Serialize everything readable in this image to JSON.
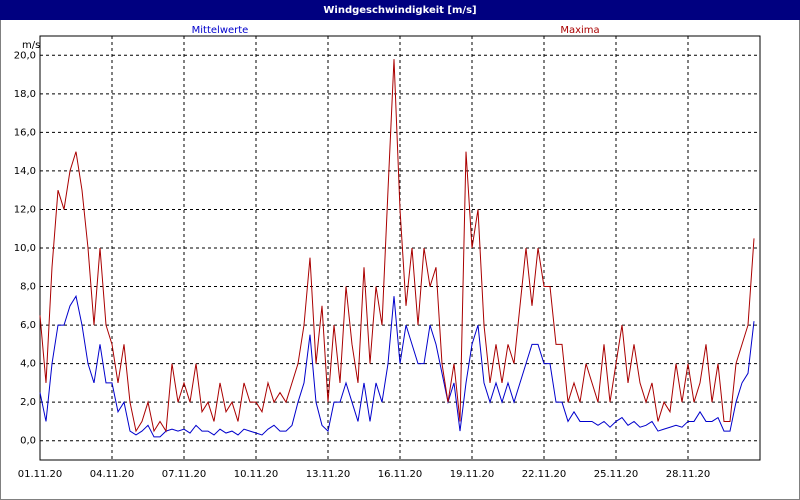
{
  "chart_data": {
    "type": "line",
    "title": "Windgeschwindigkeit [m/s]",
    "y_label": "m/s",
    "x": [
      0,
      0.25,
      0.5,
      0.75,
      1,
      1.25,
      1.5,
      1.75,
      2,
      2.25,
      2.5,
      2.75,
      3,
      3.25,
      3.5,
      3.75,
      4,
      4.25,
      4.5,
      4.75,
      5,
      5.25,
      5.5,
      5.75,
      6,
      6.25,
      6.5,
      6.75,
      7,
      7.25,
      7.5,
      7.75,
      8,
      8.25,
      8.5,
      8.75,
      9,
      9.25,
      9.5,
      9.75,
      10,
      10.25,
      10.5,
      10.75,
      11,
      11.25,
      11.5,
      11.75,
      12,
      12.25,
      12.5,
      12.75,
      13,
      13.25,
      13.5,
      13.75,
      14,
      14.25,
      14.5,
      14.75,
      15,
      15.25,
      15.5,
      15.75,
      16,
      16.25,
      16.5,
      16.75,
      17,
      17.25,
      17.5,
      17.75,
      18,
      18.25,
      18.5,
      18.75,
      19,
      19.25,
      19.5,
      19.75,
      20,
      20.25,
      20.5,
      20.75,
      21,
      21.25,
      21.5,
      21.75,
      22,
      22.25,
      22.5,
      22.75,
      23,
      23.25,
      23.5,
      23.75,
      24,
      24.25,
      24.5,
      24.75,
      25,
      25.25,
      25.5,
      25.75,
      26,
      26.25,
      26.5,
      26.75,
      27,
      27.25,
      27.5,
      27.75,
      28,
      28.25,
      28.5,
      28.75,
      29,
      29.25,
      29.5,
      29.75
    ],
    "series": [
      {
        "name": "Mittelwerte",
        "color": "#0000cc",
        "values": [
          2.5,
          1,
          4,
          6,
          6,
          7,
          7.5,
          6,
          4,
          3,
          5,
          3,
          3,
          1.5,
          2,
          0.5,
          0.3,
          0.5,
          0.8,
          0.2,
          0.2,
          0.5,
          0.6,
          0.5,
          0.6,
          0.4,
          0.8,
          0.5,
          0.5,
          0.3,
          0.6,
          0.4,
          0.5,
          0.3,
          0.6,
          0.5,
          0.4,
          0.3,
          0.6,
          0.8,
          0.5,
          0.5,
          0.8,
          2,
          3,
          5.5,
          2,
          0.8,
          0.5,
          2,
          2,
          3,
          2,
          1,
          3,
          1,
          3,
          2,
          4,
          7.5,
          4,
          6,
          5,
          4,
          4,
          6,
          5,
          3.5,
          2,
          3,
          0.5,
          3,
          5,
          6,
          3,
          2,
          3,
          2,
          3,
          2,
          3,
          4,
          5,
          5,
          4,
          4,
          2,
          2,
          1,
          1.5,
          1,
          1,
          1,
          0.8,
          1,
          0.7,
          1,
          1.2,
          0.8,
          1,
          0.7,
          0.8,
          1,
          0.5,
          0.6,
          0.7,
          0.8,
          0.7,
          1,
          1,
          1.5,
          1,
          1,
          1.2,
          0.5,
          0.5,
          2,
          3,
          3.5,
          6.2
        ]
      },
      {
        "name": "Maxima",
        "color": "#aa0000",
        "values": [
          6.5,
          3,
          9,
          13,
          12,
          14,
          15,
          13,
          10,
          6,
          10,
          6,
          5,
          3,
          5,
          2,
          0.5,
          1,
          2,
          0.5,
          1,
          0.5,
          4,
          2,
          3,
          2,
          4,
          1.5,
          2,
          1,
          3,
          1.5,
          2,
          1,
          3,
          2,
          2,
          1.5,
          3,
          2,
          2.5,
          2,
          3,
          4,
          6,
          9.5,
          4,
          7,
          2,
          6,
          3,
          8,
          5,
          3,
          9,
          4,
          8,
          6,
          13,
          19.8,
          12,
          7,
          10,
          6,
          10,
          8,
          9,
          4,
          2,
          4,
          1,
          15,
          10,
          12,
          6,
          3,
          5,
          3,
          5,
          4,
          7,
          10,
          7,
          10,
          8,
          8,
          5,
          5,
          2,
          3,
          2,
          4,
          3,
          2,
          5,
          2,
          4,
          6,
          3,
          5,
          3,
          2,
          3,
          1,
          2,
          1.5,
          4,
          2,
          4,
          2,
          3,
          5,
          2,
          4,
          1,
          1,
          4,
          5,
          6,
          10.5
        ]
      }
    ],
    "xlim": [
      0,
      30
    ],
    "xticks": [
      {
        "value": 0,
        "label": "01.11.20"
      },
      {
        "value": 3,
        "label": "04.11.20"
      },
      {
        "value": 6,
        "label": "07.11.20"
      },
      {
        "value": 9,
        "label": "10.11.20"
      },
      {
        "value": 12,
        "label": "13.11.20"
      },
      {
        "value": 15,
        "label": "16.11.20"
      },
      {
        "value": 18,
        "label": "19.11.20"
      },
      {
        "value": 21,
        "label": "22.11.20"
      },
      {
        "value": 24,
        "label": "25.11.20"
      },
      {
        "value": 27,
        "label": "28.11.20"
      }
    ],
    "ylim": [
      -1,
      21
    ],
    "yticks": [
      {
        "value": 0,
        "label": "0,0"
      },
      {
        "value": 2,
        "label": "2,0"
      },
      {
        "value": 4,
        "label": "4,0"
      },
      {
        "value": 6,
        "label": "6,0"
      },
      {
        "value": 8,
        "label": "8,0"
      },
      {
        "value": 10,
        "label": "10,0"
      },
      {
        "value": 12,
        "label": "12,0"
      },
      {
        "value": 14,
        "label": "14,0"
      },
      {
        "value": 16,
        "label": "16,0"
      },
      {
        "value": 18,
        "label": "18,0"
      },
      {
        "value": 20,
        "label": "20,0"
      }
    ],
    "grid": true
  }
}
